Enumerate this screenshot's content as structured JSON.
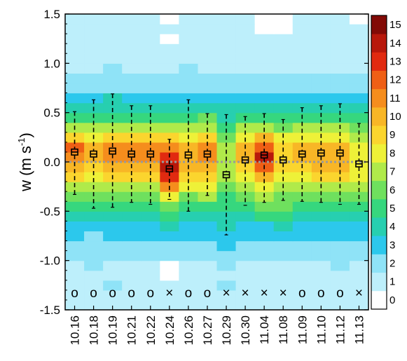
{
  "chart_data": {
    "type": "heatmap",
    "ylabel": "w (m s",
    "ylabel_sup": "-1",
    "ylabel_close": ")",
    "xlabel": "",
    "ylim": [
      -1.5,
      1.5
    ],
    "yticks": [
      -1.5,
      -1.0,
      -0.5,
      0.0,
      0.5,
      1.0,
      1.5
    ],
    "ytick_labels": [
      "-1.5",
      "-1.0",
      "-0.5",
      "0.0",
      "0.5",
      "1.0",
      "1.5"
    ],
    "categories": [
      "10.16",
      "10.18",
      "10.19",
      "10.21",
      "10.22",
      "10.24",
      "10.26",
      "10.27",
      "10.29",
      "10.30",
      "11.04",
      "11.08",
      "11.09",
      "11.10",
      "11.12",
      "11.13"
    ],
    "bin_edges": [
      -1.5,
      -1.3,
      -1.2,
      -1.1,
      -1.0,
      -0.9,
      -0.8,
      -0.7,
      -0.6,
      -0.5,
      -0.4,
      -0.3,
      -0.2,
      -0.1,
      0.0,
      0.1,
      0.2,
      0.3,
      0.4,
      0.5,
      0.6,
      0.7,
      0.8,
      0.9,
      1.0,
      1.1,
      1.2,
      1.3,
      1.4,
      1.5
    ],
    "colorbar": {
      "ticks": [
        0,
        1,
        2,
        3,
        4,
        5,
        6,
        7,
        8,
        9,
        10,
        11,
        12,
        13,
        14,
        15
      ],
      "labels": [
        "0",
        "1",
        "2",
        "3",
        "4",
        "5",
        "6",
        "7",
        "8",
        "9",
        "10",
        "11",
        "12",
        "13",
        "14",
        "15"
      ],
      "colors": [
        "#ffffff",
        "#bdeffb",
        "#8fe3f7",
        "#2cc8ec",
        "#27cfb0",
        "#36d77e",
        "#6fe05e",
        "#b0ea4a",
        "#eef138",
        "#fbd52e",
        "#f8b626",
        "#f58d1d",
        "#ef5f15",
        "#e12a10",
        "#b8180b",
        "#820a06"
      ]
    },
    "counts": [
      [
        1,
        1,
        1,
        1,
        1,
        1,
        1,
        1,
        1,
        1,
        1,
        1,
        1,
        1,
        1,
        1
      ],
      [
        1,
        1,
        2,
        1,
        1,
        1,
        1,
        1,
        2,
        1,
        1,
        1,
        1,
        1,
        1,
        1
      ],
      [
        1,
        1,
        1,
        1,
        1,
        0,
        1,
        1,
        1,
        1,
        1,
        1,
        1,
        1,
        1,
        1
      ],
      [
        1,
        2,
        1,
        1,
        1,
        0,
        1,
        1,
        2,
        1,
        1,
        1,
        1,
        1,
        2,
        1
      ],
      [
        2,
        2,
        2,
        2,
        2,
        2,
        2,
        2,
        2,
        2,
        2,
        2,
        2,
        2,
        2,
        2
      ],
      [
        2,
        2,
        2,
        2,
        2,
        2,
        2,
        2,
        3,
        2,
        2,
        2,
        2,
        2,
        2,
        2
      ],
      [
        3,
        2,
        3,
        3,
        3,
        3,
        3,
        3,
        3,
        3,
        3,
        3,
        3,
        3,
        3,
        3
      ],
      [
        3,
        3,
        3,
        3,
        3,
        4,
        3,
        3,
        4,
        3,
        3,
        4,
        3,
        3,
        3,
        3
      ],
      [
        4,
        4,
        4,
        4,
        4,
        5,
        4,
        4,
        4,
        4,
        5,
        5,
        4,
        4,
        4,
        4
      ],
      [
        5,
        5,
        5,
        5,
        5,
        6,
        5,
        5,
        5,
        5,
        6,
        6,
        5,
        5,
        5,
        5
      ],
      [
        6,
        6,
        6,
        6,
        6,
        8,
        6,
        7,
        5,
        6,
        7,
        6,
        6,
        6,
        6,
        6
      ],
      [
        7,
        7,
        7,
        7,
        7,
        11,
        8,
        8,
        6,
        7,
        8,
        7,
        7,
        7,
        7,
        7
      ],
      [
        9,
        8,
        9,
        9,
        9,
        13,
        9,
        9,
        7,
        8,
        10,
        8,
        8,
        9,
        9,
        8
      ],
      [
        10,
        9,
        10,
        10,
        10,
        14,
        10,
        10,
        7,
        9,
        12,
        9,
        9,
        10,
        10,
        8
      ],
      [
        11,
        10,
        11,
        11,
        11,
        13,
        10,
        11,
        7,
        10,
        14,
        9,
        10,
        10,
        10,
        8
      ],
      [
        12,
        10,
        11,
        11,
        11,
        11,
        10,
        11,
        7,
        10,
        12,
        9,
        10,
        10,
        10,
        8
      ],
      [
        9,
        8,
        9,
        9,
        9,
        9,
        8,
        9,
        6,
        8,
        10,
        8,
        8,
        8,
        8,
        7
      ],
      [
        7,
        7,
        7,
        7,
        7,
        7,
        7,
        7,
        5,
        7,
        7,
        6,
        7,
        7,
        7,
        6
      ],
      [
        5,
        5,
        5,
        5,
        5,
        5,
        5,
        6,
        4,
        5,
        5,
        5,
        5,
        5,
        5,
        5
      ],
      [
        4,
        4,
        4,
        4,
        4,
        4,
        4,
        4,
        4,
        4,
        4,
        4,
        4,
        4,
        4,
        4
      ],
      [
        3,
        3,
        4,
        3,
        3,
        3,
        3,
        3,
        3,
        3,
        3,
        3,
        3,
        3,
        3,
        3
      ],
      [
        2,
        2,
        2,
        2,
        2,
        2,
        2,
        2,
        2,
        2,
        2,
        2,
        2,
        2,
        2,
        2
      ],
      [
        2,
        2,
        2,
        2,
        2,
        2,
        2,
        2,
        2,
        2,
        2,
        2,
        2,
        2,
        2,
        2
      ],
      [
        1,
        1,
        2,
        1,
        1,
        1,
        2,
        1,
        1,
        1,
        1,
        1,
        1,
        1,
        1,
        1
      ],
      [
        1,
        1,
        1,
        1,
        1,
        1,
        1,
        1,
        1,
        1,
        1,
        1,
        1,
        1,
        1,
        1
      ],
      [
        1,
        1,
        1,
        1,
        1,
        1,
        1,
        1,
        1,
        1,
        1,
        1,
        1,
        1,
        1,
        1
      ],
      [
        1,
        1,
        1,
        1,
        1,
        0,
        1,
        1,
        1,
        1,
        1,
        1,
        1,
        1,
        1,
        1
      ],
      [
        1,
        1,
        1,
        1,
        1,
        1,
        1,
        1,
        1,
        1,
        0,
        0,
        1,
        1,
        1,
        1
      ],
      [
        1,
        1,
        1,
        1,
        1,
        0,
        1,
        1,
        1,
        1,
        0,
        0,
        1,
        1,
        1,
        0
      ]
    ],
    "boxes": [
      {
        "median": 0.1,
        "q1": 0.07,
        "q3": 0.13,
        "low": -0.33,
        "high": 0.51
      },
      {
        "median": 0.08,
        "q1": 0.05,
        "q3": 0.11,
        "low": -0.47,
        "high": 0.63
      },
      {
        "median": 0.11,
        "q1": 0.08,
        "q3": 0.14,
        "low": -0.46,
        "high": 0.69
      },
      {
        "median": 0.08,
        "q1": 0.05,
        "q3": 0.11,
        "low": -0.41,
        "high": 0.57
      },
      {
        "median": 0.08,
        "q1": 0.05,
        "q3": 0.11,
        "low": -0.43,
        "high": 0.57
      },
      {
        "median": -0.07,
        "q1": -0.1,
        "q3": -0.04,
        "low": -0.38,
        "high": 0.23
      },
      {
        "median": 0.07,
        "q1": 0.04,
        "q3": 0.1,
        "low": -0.5,
        "high": 0.63
      },
      {
        "median": 0.08,
        "q1": 0.05,
        "q3": 0.11,
        "low": -0.34,
        "high": 0.49
      },
      {
        "median": -0.13,
        "q1": -0.16,
        "q3": -0.1,
        "low": -0.74,
        "high": 0.48
      },
      {
        "median": 0.02,
        "q1": -0.01,
        "q3": 0.05,
        "low": -0.44,
        "high": 0.46
      },
      {
        "median": 0.07,
        "q1": 0.04,
        "q3": 0.1,
        "low": -0.41,
        "high": 0.49
      },
      {
        "median": 0.02,
        "q1": -0.01,
        "q3": 0.05,
        "low": -0.39,
        "high": 0.43
      },
      {
        "median": 0.08,
        "q1": 0.05,
        "q3": 0.11,
        "low": -0.4,
        "high": 0.55
      },
      {
        "median": 0.09,
        "q1": 0.06,
        "q3": 0.12,
        "low": -0.41,
        "high": 0.57
      },
      {
        "median": 0.09,
        "q1": 0.06,
        "q3": 0.12,
        "low": -0.43,
        "high": 0.59
      },
      {
        "median": -0.02,
        "q1": -0.05,
        "q3": 0.01,
        "low": -0.43,
        "high": 0.39
      }
    ],
    "markers": [
      "o",
      "o",
      "o",
      "o",
      "o",
      "×",
      "o",
      "o",
      "×",
      "×",
      "×",
      "×",
      "o",
      "o",
      "o",
      "×"
    ],
    "marker_y": -1.33,
    "zero_line": 0.0
  }
}
